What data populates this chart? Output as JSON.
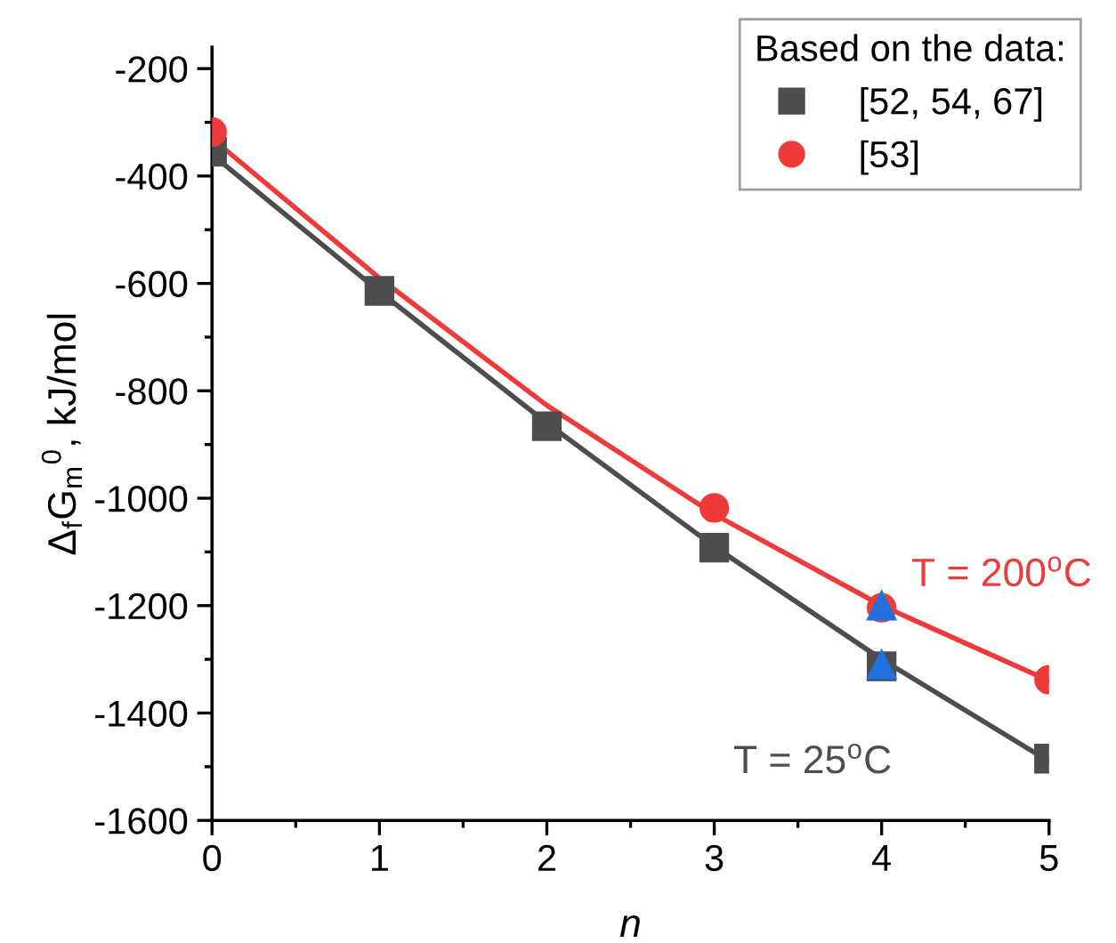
{
  "chart_data": {
    "type": "scatter",
    "xlabel": "n",
    "ylabel": "Δ$_{f}$G$_{m}$$^{0}$, kJ/mol",
    "legend_title": "Based on the data:",
    "legend": "top right",
    "grid": false,
    "xlim": [
      0,
      5
    ],
    "xticks": [
      0,
      1,
      2,
      3,
      4,
      5
    ],
    "ylim": [
      -1600,
      -160
    ],
    "yticks": [
      -1600,
      -1400,
      -1200,
      -1000,
      -800,
      -600,
      -400,
      -200
    ],
    "series": [
      {
        "type": "line",
        "name": "T = 25$^{o}$C",
        "color": "#4d4d4d",
        "x": [
          0,
          1,
          2,
          3,
          4,
          5
        ],
        "values": [
          -360,
          -615,
          -860,
          -1090,
          -1300,
          -1490
        ],
        "marker": "none"
      },
      {
        "type": "line",
        "name": "T = 200$^{o}$C",
        "color": "#ee3a3a",
        "x": [
          0,
          1,
          2,
          3,
          4,
          5
        ],
        "values": [
          -330,
          -590,
          -827,
          -1030,
          -1200,
          -1340
        ],
        "marker": "none"
      },
      {
        "name": "[52, 54, 67]",
        "color": "#4d4d4d",
        "marker": "square",
        "x": [
          0,
          1,
          2,
          3,
          4,
          5
        ],
        "values": [
          -355,
          -614,
          -866,
          -1092,
          -1313,
          -1485
        ]
      },
      {
        "name": "[53]",
        "color": "#ee3a3a",
        "marker": "circle",
        "x": [
          0,
          3,
          4,
          5
        ],
        "values": [
          -318,
          -1018,
          -1204,
          -1338
        ]
      },
      {
        "color": "#1f6fdc",
        "marker": "triangle",
        "x": [
          4,
          4
        ],
        "values": [
          -1200,
          -1310
        ]
      }
    ]
  }
}
